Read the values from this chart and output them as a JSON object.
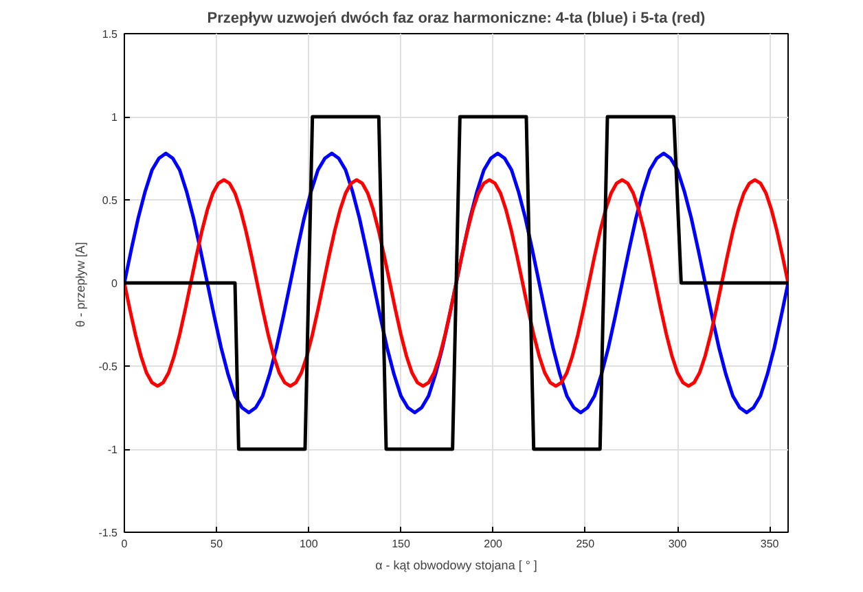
{
  "chart_data": {
    "type": "line",
    "title": "Przepływ uzwojeń dwóch faz oraz harmoniczne: 4-ta (blue) i 5-ta (red)",
    "xlabel": "α - kąt obwodowy stojana [ ° ]",
    "ylabel": "θ - przepływ  [A]",
    "xlim": [
      0,
      360
    ],
    "xticks": [
      0,
      50,
      100,
      150,
      200,
      250,
      300,
      350
    ],
    "ylim": [
      -1.5,
      1.5
    ],
    "yticks": [
      -1.5,
      -1,
      -0.5,
      0,
      0.5,
      1,
      1.5
    ],
    "grid": true,
    "series": [
      {
        "color": "#0000ff",
        "x": [
          0,
          3.75,
          7.5,
          11.25,
          15,
          18.75,
          22.5,
          26.25,
          30,
          33.75,
          37.5,
          41.25,
          45,
          48.75,
          52.5,
          56.25,
          60,
          63.75,
          67.5,
          71.25,
          75,
          78.75,
          82.5,
          86.25,
          90,
          93.75,
          97.5,
          101.25,
          105,
          108.75,
          112.5,
          116.25,
          120,
          123.75,
          127.5,
          131.25,
          135,
          138.75,
          142.5,
          146.25,
          150,
          153.75,
          157.5,
          161.25,
          165,
          168.75,
          172.5,
          176.25,
          180,
          183.75,
          187.5,
          191.25,
          195,
          198.75,
          202.5,
          206.25,
          210,
          213.75,
          217.5,
          221.25,
          225,
          228.75,
          232.5,
          236.25,
          240,
          243.75,
          247.5,
          251.25,
          255,
          258.75,
          262.5,
          266.25,
          270,
          273.75,
          277.5,
          281.25,
          285,
          288.75,
          292.5,
          296.25,
          300,
          303.75,
          307.5,
          311.25,
          315,
          318.75,
          322.5,
          326.25,
          330,
          333.75,
          337.5,
          341.25,
          345,
          348.75,
          352.5,
          356.25,
          360
        ],
        "values": [
          0,
          0.2,
          0.39,
          0.55,
          0.68,
          0.75,
          0.78,
          0.75,
          0.68,
          0.55,
          0.39,
          0.2,
          0,
          -0.2,
          -0.39,
          -0.55,
          -0.68,
          -0.75,
          -0.78,
          -0.75,
          -0.68,
          -0.55,
          -0.39,
          -0.2,
          0,
          0.2,
          0.39,
          0.55,
          0.68,
          0.75,
          0.78,
          0.75,
          0.68,
          0.55,
          0.39,
          0.2,
          0,
          -0.2,
          -0.39,
          -0.55,
          -0.68,
          -0.75,
          -0.78,
          -0.75,
          -0.68,
          -0.55,
          -0.39,
          -0.2,
          0,
          0.2,
          0.39,
          0.55,
          0.68,
          0.75,
          0.78,
          0.75,
          0.68,
          0.55,
          0.39,
          0.2,
          0,
          -0.2,
          -0.39,
          -0.55,
          -0.68,
          -0.75,
          -0.78,
          -0.75,
          -0.68,
          -0.55,
          -0.39,
          -0.2,
          0,
          0.2,
          0.39,
          0.55,
          0.68,
          0.75,
          0.78,
          0.75,
          0.68,
          0.55,
          0.39,
          0.2,
          0,
          -0.2,
          -0.39,
          -0.55,
          -0.68,
          -0.75,
          -0.78,
          -0.75,
          -0.68,
          -0.55,
          -0.39,
          -0.2,
          0
        ]
      },
      {
        "color": "#ff0000",
        "x": [
          0,
          3,
          6,
          9,
          12,
          15,
          18,
          21,
          24,
          27,
          30,
          33,
          36,
          39,
          42,
          45,
          48,
          51,
          54,
          57,
          60,
          63,
          66,
          69,
          72,
          75,
          78,
          81,
          84,
          87,
          90,
          93,
          96,
          99,
          102,
          105,
          108,
          111,
          114,
          117,
          120,
          123,
          126,
          129,
          132,
          135,
          138,
          141,
          144,
          147,
          150,
          153,
          156,
          159,
          162,
          165,
          168,
          171,
          174,
          177,
          180,
          183,
          186,
          189,
          192,
          195,
          198,
          201,
          204,
          207,
          210,
          213,
          216,
          219,
          222,
          225,
          228,
          231,
          234,
          237,
          240,
          243,
          246,
          249,
          252,
          255,
          258,
          261,
          264,
          267,
          270,
          273,
          276,
          279,
          282,
          285,
          288,
          291,
          294,
          297,
          300,
          303,
          306,
          309,
          312,
          315,
          318,
          321,
          324,
          327,
          330,
          333,
          336,
          339,
          342,
          345,
          348,
          351,
          354,
          357,
          360
        ],
        "values": [
          0,
          -0.16,
          -0.31,
          -0.44,
          -0.54,
          -0.6,
          -0.62,
          -0.6,
          -0.54,
          -0.44,
          -0.31,
          -0.16,
          0,
          0.16,
          0.31,
          0.44,
          0.54,
          0.6,
          0.62,
          0.6,
          0.54,
          0.44,
          0.31,
          0.16,
          0,
          -0.16,
          -0.31,
          -0.44,
          -0.54,
          -0.6,
          -0.62,
          -0.6,
          -0.54,
          -0.44,
          -0.31,
          -0.16,
          0,
          0.16,
          0.31,
          0.44,
          0.54,
          0.6,
          0.62,
          0.6,
          0.54,
          0.44,
          0.31,
          0.16,
          0,
          -0.16,
          -0.31,
          -0.44,
          -0.54,
          -0.6,
          -0.62,
          -0.6,
          -0.54,
          -0.44,
          -0.31,
          -0.16,
          0,
          0.16,
          0.31,
          0.44,
          0.54,
          0.6,
          0.62,
          0.6,
          0.54,
          0.44,
          0.31,
          0.16,
          0,
          -0.16,
          -0.31,
          -0.44,
          -0.54,
          -0.6,
          -0.62,
          -0.6,
          -0.54,
          -0.44,
          -0.31,
          -0.16,
          0,
          0.16,
          0.31,
          0.44,
          0.54,
          0.6,
          0.62,
          0.6,
          0.54,
          0.44,
          0.31,
          0.16,
          0,
          -0.16,
          -0.31,
          -0.44,
          -0.54,
          -0.6,
          -0.62,
          -0.6,
          -0.54,
          -0.44,
          -0.31,
          -0.16,
          0,
          0.16,
          0.31,
          0.44,
          0.54,
          0.6,
          0.62,
          0.6,
          0.54,
          0.44,
          0.31,
          0.16,
          0
        ]
      },
      {
        "color": "#000000",
        "x": [
          0,
          60,
          62,
          98,
          102,
          138,
          142,
          178,
          182,
          218,
          222,
          258,
          262,
          298,
          302,
          360
        ],
        "values": [
          0,
          0,
          -1,
          -1,
          1,
          1,
          -1,
          -1,
          1,
          1,
          -1,
          -1,
          1,
          1,
          0,
          0
        ]
      }
    ]
  }
}
